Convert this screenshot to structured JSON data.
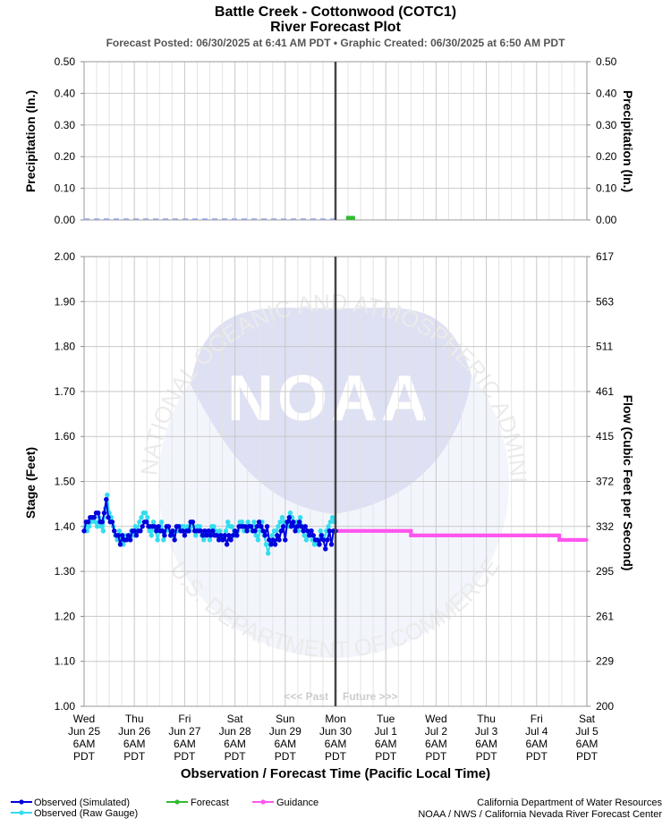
{
  "header": {
    "title": "Battle Creek - Cottonwood (COTC1)",
    "subtitle": "River Forecast Plot",
    "meta": "Forecast Posted: 06/30/2025 at 6:41 AM PDT  •  Graphic Created: 06/30/2025 at 6:50 AM PDT"
  },
  "watermark": {
    "logo_text": "NOAA",
    "top_arc": "NATIONAL OCEANIC AND ATMOSPHERIC ADMINISTRATION",
    "bottom_arc": "U.S. DEPARTMENT OF COMMERCE"
  },
  "past_future": {
    "past": "<<< Past",
    "future": "Future >>>"
  },
  "xaxis": {
    "title": "Observation / Forecast Time (Pacific Local Time)",
    "ticks": [
      [
        "Wed",
        "Jun 25",
        "6AM",
        "PDT"
      ],
      [
        "Thu",
        "Jun 26",
        "6AM",
        "PDT"
      ],
      [
        "Fri",
        "Jun 27",
        "6AM",
        "PDT"
      ],
      [
        "Sat",
        "Jun 28",
        "6AM",
        "PDT"
      ],
      [
        "Sun",
        "Jun 29",
        "6AM",
        "PDT"
      ],
      [
        "Mon",
        "Jun 30",
        "6AM",
        "PDT"
      ],
      [
        "Tue",
        "Jul 1",
        "6AM",
        "PDT"
      ],
      [
        "Wed",
        "Jul 2",
        "6AM",
        "PDT"
      ],
      [
        "Thu",
        "Jul 3",
        "6AM",
        "PDT"
      ],
      [
        "Fri",
        "Jul 4",
        "6AM",
        "PDT"
      ],
      [
        "Sat",
        "Jul 5",
        "6AM",
        "PDT"
      ]
    ]
  },
  "legend": {
    "observed_sim": "Observed (Simulated)",
    "observed_raw": "Observed (Raw Gauge)",
    "forecast": "Forecast",
    "guidance": "Guidance"
  },
  "credits": {
    "line1": "California Department of Water Resources",
    "line2": "NOAA / NWS / California Nevada River Forecast Center"
  },
  "colors": {
    "observed_sim": "#0000dd",
    "observed_raw": "#33ddee",
    "forecast": "#33bb33",
    "guidance": "#ff55ee",
    "now_line": "#444444"
  },
  "chart_data": [
    {
      "type": "bar",
      "name": "precipitation",
      "ylabel_left": "Precipitation (In.)",
      "ylabel_right": "Precipitation (In.)",
      "ylim": [
        0,
        0.5
      ],
      "yticks": [
        "0.00",
        "0.10",
        "0.20",
        "0.30",
        "0.40",
        "0.50"
      ],
      "grid": true,
      "forecast_bars": [
        {
          "x": 5.3,
          "value": 0.01
        }
      ],
      "observed_dashed": {
        "x_start": 0,
        "x_end": 5,
        "value": 0.0
      }
    },
    {
      "type": "line",
      "name": "stage",
      "ylabel_left": "Stage (Feet)",
      "ylabel_right": "Flow (Cubic Feet per Second)",
      "ylim": [
        1.0,
        2.0
      ],
      "yticks": [
        "1.00",
        "1.10",
        "1.20",
        "1.30",
        "1.40",
        "1.50",
        "1.60",
        "1.70",
        "1.80",
        "1.90",
        "2.00"
      ],
      "right_ticks": [
        "200",
        "229",
        "261",
        "295",
        "332",
        "372",
        "415",
        "461",
        "511",
        "563",
        "617"
      ],
      "grid": true,
      "x_unit": "days since Wed Jun 25 6AM PDT",
      "now": 5.0,
      "observed_simulated": {
        "x": [
          0.0,
          0.04,
          0.08,
          0.12,
          0.16,
          0.2,
          0.24,
          0.28,
          0.32,
          0.36,
          0.4,
          0.44,
          0.48,
          0.52,
          0.56,
          0.6,
          0.64,
          0.68,
          0.72,
          0.76,
          0.8,
          0.84,
          0.88,
          0.92,
          0.96,
          1.0,
          1.04,
          1.08,
          1.12,
          1.16,
          1.2,
          1.24,
          1.28,
          1.32,
          1.36,
          1.4,
          1.44,
          1.48,
          1.52,
          1.56,
          1.6,
          1.64,
          1.68,
          1.72,
          1.76,
          1.8,
          1.84,
          1.88,
          1.92,
          1.96,
          2.0,
          2.04,
          2.08,
          2.12,
          2.16,
          2.2,
          2.24,
          2.28,
          2.32,
          2.36,
          2.4,
          2.44,
          2.48,
          2.52,
          2.56,
          2.6,
          2.64,
          2.68,
          2.72,
          2.76,
          2.8,
          2.84,
          2.88,
          2.92,
          2.96,
          3.0,
          3.04,
          3.08,
          3.12,
          3.16,
          3.2,
          3.24,
          3.28,
          3.32,
          3.36,
          3.4,
          3.44,
          3.48,
          3.52,
          3.56,
          3.6,
          3.64,
          3.68,
          3.72,
          3.76,
          3.8,
          3.84,
          3.88,
          3.92,
          3.96,
          4.0,
          4.04,
          4.08,
          4.12,
          4.16,
          4.2,
          4.24,
          4.28,
          4.32,
          4.36,
          4.4,
          4.44,
          4.48,
          4.52,
          4.56,
          4.6,
          4.64,
          4.68,
          4.72,
          4.76,
          4.8,
          4.84,
          4.88,
          4.92,
          4.96,
          5.0
        ],
        "y": [
          1.39,
          1.41,
          1.41,
          1.42,
          1.42,
          1.42,
          1.43,
          1.43,
          1.41,
          1.41,
          1.43,
          1.46,
          1.42,
          1.41,
          1.41,
          1.39,
          1.38,
          1.38,
          1.36,
          1.38,
          1.37,
          1.37,
          1.38,
          1.37,
          1.39,
          1.39,
          1.38,
          1.39,
          1.39,
          1.4,
          1.41,
          1.41,
          1.4,
          1.4,
          1.4,
          1.4,
          1.39,
          1.4,
          1.39,
          1.39,
          1.38,
          1.4,
          1.4,
          1.38,
          1.39,
          1.37,
          1.4,
          1.4,
          1.39,
          1.39,
          1.38,
          1.39,
          1.39,
          1.41,
          1.41,
          1.39,
          1.39,
          1.39,
          1.39,
          1.38,
          1.39,
          1.38,
          1.39,
          1.38,
          1.39,
          1.38,
          1.38,
          1.37,
          1.38,
          1.37,
          1.38,
          1.36,
          1.38,
          1.37,
          1.38,
          1.39,
          1.38,
          1.4,
          1.4,
          1.4,
          1.4,
          1.39,
          1.4,
          1.4,
          1.39,
          1.39,
          1.4,
          1.41,
          1.4,
          1.39,
          1.38,
          1.4,
          1.37,
          1.36,
          1.37,
          1.36,
          1.38,
          1.37,
          1.39,
          1.4,
          1.37,
          1.41,
          1.42,
          1.4,
          1.41,
          1.39,
          1.4,
          1.41,
          1.4,
          1.39,
          1.4,
          1.39,
          1.38,
          1.39,
          1.38,
          1.37,
          1.37,
          1.36,
          1.38,
          1.37,
          1.35,
          1.37,
          1.39,
          1.36,
          1.39,
          1.39
        ],
        "note": "approximate readings"
      },
      "observed_raw": {
        "x": [
          0.02,
          0.06,
          0.1,
          0.14,
          0.18,
          0.22,
          0.26,
          0.3,
          0.34,
          0.38,
          0.42,
          0.46,
          0.5,
          0.54,
          0.58,
          0.62,
          0.66,
          0.7,
          0.74,
          0.78,
          0.82,
          0.86,
          0.9,
          0.94,
          0.98,
          1.02,
          1.06,
          1.1,
          1.14,
          1.18,
          1.22,
          1.26,
          1.3,
          1.34,
          1.38,
          1.42,
          1.46,
          1.5,
          1.54,
          1.58,
          1.62,
          1.66,
          1.7,
          1.74,
          1.78,
          1.82,
          1.86,
          1.9,
          1.94,
          1.98,
          2.02,
          2.06,
          2.1,
          2.14,
          2.18,
          2.22,
          2.26,
          2.3,
          2.34,
          2.38,
          2.42,
          2.46,
          2.5,
          2.54,
          2.58,
          2.62,
          2.66,
          2.7,
          2.74,
          2.78,
          2.82,
          2.86,
          2.9,
          2.94,
          2.98,
          3.02,
          3.06,
          3.1,
          3.14,
          3.18,
          3.22,
          3.26,
          3.3,
          3.34,
          3.38,
          3.42,
          3.46,
          3.5,
          3.54,
          3.58,
          3.62,
          3.66,
          3.7,
          3.74,
          3.78,
          3.82,
          3.86,
          3.9,
          3.94,
          3.98,
          4.02,
          4.06,
          4.1,
          4.14,
          4.18,
          4.22,
          4.26,
          4.3,
          4.34,
          4.38,
          4.42,
          4.46,
          4.5,
          4.54,
          4.58,
          4.62,
          4.66,
          4.7,
          4.74,
          4.78,
          4.82,
          4.86,
          4.9,
          4.94,
          4.98
        ],
        "y": [
          1.4,
          1.39,
          1.4,
          1.41,
          1.42,
          1.41,
          1.4,
          1.42,
          1.4,
          1.39,
          1.44,
          1.47,
          1.43,
          1.42,
          1.4,
          1.38,
          1.37,
          1.39,
          1.37,
          1.36,
          1.38,
          1.37,
          1.38,
          1.39,
          1.38,
          1.4,
          1.39,
          1.41,
          1.42,
          1.43,
          1.43,
          1.42,
          1.39,
          1.38,
          1.41,
          1.39,
          1.37,
          1.39,
          1.41,
          1.37,
          1.39,
          1.4,
          1.39,
          1.38,
          1.38,
          1.39,
          1.39,
          1.4,
          1.4,
          1.4,
          1.39,
          1.4,
          1.39,
          1.4,
          1.4,
          1.38,
          1.4,
          1.4,
          1.38,
          1.37,
          1.38,
          1.39,
          1.37,
          1.4,
          1.4,
          1.39,
          1.38,
          1.39,
          1.37,
          1.38,
          1.39,
          1.41,
          1.4,
          1.4,
          1.38,
          1.38,
          1.39,
          1.41,
          1.41,
          1.39,
          1.4,
          1.41,
          1.4,
          1.39,
          1.41,
          1.38,
          1.37,
          1.39,
          1.41,
          1.38,
          1.36,
          1.34,
          1.36,
          1.38,
          1.39,
          1.39,
          1.4,
          1.41,
          1.42,
          1.41,
          1.4,
          1.4,
          1.43,
          1.42,
          1.4,
          1.41,
          1.39,
          1.42,
          1.4,
          1.38,
          1.37,
          1.38,
          1.39,
          1.37,
          1.36,
          1.37,
          1.36,
          1.39,
          1.38,
          1.37,
          1.39,
          1.4,
          1.41,
          1.42,
          1.41
        ],
        "note": "approximate readings"
      },
      "guidance": {
        "steps": [
          {
            "x_start": 5.0,
            "x_end": 6.5,
            "value": 1.39
          },
          {
            "x_start": 6.5,
            "x_end": 9.45,
            "value": 1.38
          },
          {
            "x_start": 9.45,
            "x_end": 10.0,
            "value": 1.37
          }
        ]
      }
    }
  ]
}
